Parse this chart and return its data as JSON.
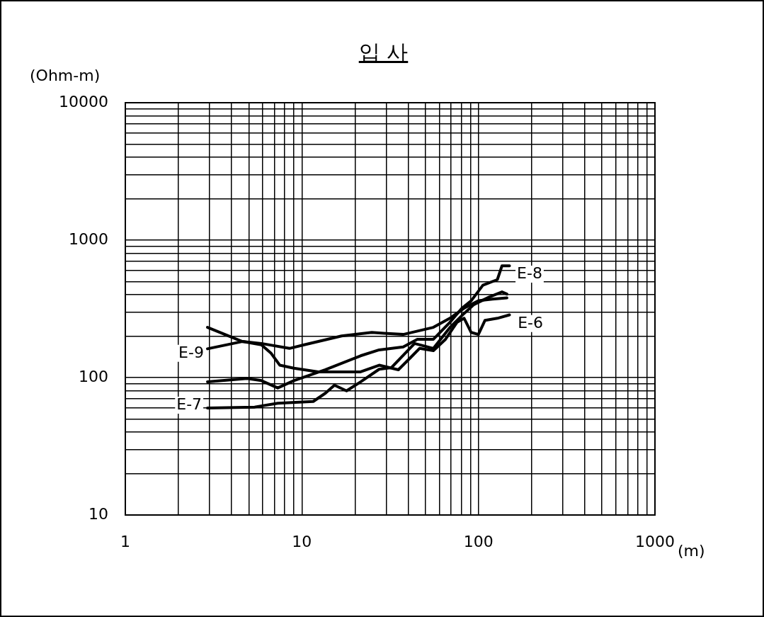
{
  "chart_data": {
    "type": "line",
    "title": "입 사",
    "xlabel": "(m)",
    "ylabel": "(Ohm-m)",
    "log": "xy",
    "grid": true,
    "legend": false,
    "marker": "none",
    "line_style": "solid",
    "xlim": [
      1,
      1000
    ],
    "ylim": [
      10,
      10000
    ],
    "xticks": [
      1,
      {
        "value": 2,
        "label": null
      },
      {
        "value": 3,
        "label": null
      },
      {
        "value": 4,
        "label": null
      },
      {
        "value": 5,
        "label": null
      },
      {
        "value": 6,
        "label": null
      },
      {
        "value": 7,
        "label": null
      },
      {
        "value": 8,
        "label": null
      },
      {
        "value": 9,
        "label": null
      },
      10,
      {
        "value": 20,
        "label": null
      },
      {
        "value": 30,
        "label": null
      },
      {
        "value": 40,
        "label": null
      },
      {
        "value": 50,
        "label": null
      },
      {
        "value": 60,
        "label": null
      },
      {
        "value": 70,
        "label": null
      },
      {
        "value": 80,
        "label": null
      },
      {
        "value": 90,
        "label": null
      },
      100,
      {
        "value": 200,
        "label": null
      },
      {
        "value": 300,
        "label": null
      },
      {
        "value": 400,
        "label": null
      },
      {
        "value": 500,
        "label": null
      },
      {
        "value": 600,
        "label": null
      },
      {
        "value": 700,
        "label": null
      },
      {
        "value": 800,
        "label": null
      },
      {
        "value": 900,
        "label": null
      },
      1000
    ],
    "yticks": [
      10,
      {
        "value": 20,
        "label": null
      },
      {
        "value": 30,
        "label": null
      },
      {
        "value": 40,
        "label": null
      },
      {
        "value": 50,
        "label": null
      },
      {
        "value": 60,
        "label": null
      },
      {
        "value": 70,
        "label": null
      },
      {
        "value": 80,
        "label": null
      },
      {
        "value": 90,
        "label": null
      },
      100,
      {
        "value": 200,
        "label": null
      },
      {
        "value": 300,
        "label": null
      },
      {
        "value": 400,
        "label": null
      },
      {
        "value": 500,
        "label": null
      },
      {
        "value": 600,
        "label": null
      },
      {
        "value": 700,
        "label": null
      },
      {
        "value": 800,
        "label": null
      },
      {
        "value": 900,
        "label": null
      },
      1000,
      {
        "value": 2000,
        "label": null
      },
      {
        "value": 3000,
        "label": null
      },
      {
        "value": 4000,
        "label": null
      },
      {
        "value": 5000,
        "label": null
      },
      {
        "value": 6000,
        "label": null
      },
      {
        "value": 7000,
        "label": null
      },
      {
        "value": 8000,
        "label": null
      },
      {
        "value": 9000,
        "label": null
      },
      10000
    ],
    "series": [
      {
        "color": "#000000",
        "x": [
          2.92,
          4.6,
          5.9,
          8.5,
          10.3,
          16.8,
          24.9,
          29.2,
          37.5,
          55.6,
          68.9,
          83,
          100,
          120,
          145
        ],
        "values": [
          162,
          183,
          177,
          163,
          173,
          201,
          213,
          210,
          206,
          232,
          270,
          320,
          362,
          372,
          380
        ]
      },
      {
        "color": "#000000",
        "x": [
          2.92,
          5.4,
          7.3,
          11.6,
          13.6,
          15.3,
          17.9,
          21.5,
          27.4,
          32.1,
          43.5,
          55.6,
          68.9,
          80.7,
          94.4,
          115,
          136,
          145
        ],
        "values": [
          60,
          61,
          65,
          67,
          77,
          88,
          80,
          93,
          115,
          118,
          177,
          163,
          231,
          283,
          340,
          385,
          420,
          405
        ]
      },
      {
        "color": "#000000",
        "x": [
          2.92,
          4.9,
          5.9,
          7.3,
          9,
          13.6,
          21.5,
          27.4,
          37.5,
          45.1,
          55.6,
          68.9,
          80.7,
          91,
          106,
          128,
          136,
          150
        ],
        "values": [
          93,
          98.5,
          95,
          84,
          95,
          114,
          144,
          159,
          167,
          190,
          190,
          252,
          320,
          362,
          470,
          516,
          651,
          651
        ]
      },
      {
        "color": "#000000",
        "x": [
          2.92,
          4.6,
          5.9,
          6.7,
          7.5,
          9,
          12.4,
          21.5,
          27.4,
          35.2,
          41.1,
          46.4,
          55.6,
          65.1,
          75.6,
          83,
          91,
          100,
          109,
          128,
          150
        ],
        "values": [
          232,
          183,
          173,
          150,
          123,
          117,
          110,
          110,
          123,
          114,
          139,
          163,
          157,
          190,
          252,
          270,
          213,
          206,
          261,
          270,
          286
        ]
      }
    ],
    "annotations": [
      {
        "text": "E-9",
        "x": 2.36,
        "y": 150
      },
      {
        "text": "E-7",
        "x": 2.3,
        "y": 63
      },
      {
        "text": "E-8",
        "x": 195,
        "y": 566
      },
      {
        "text": "E-6",
        "x": 197,
        "y": 247
      }
    ]
  }
}
